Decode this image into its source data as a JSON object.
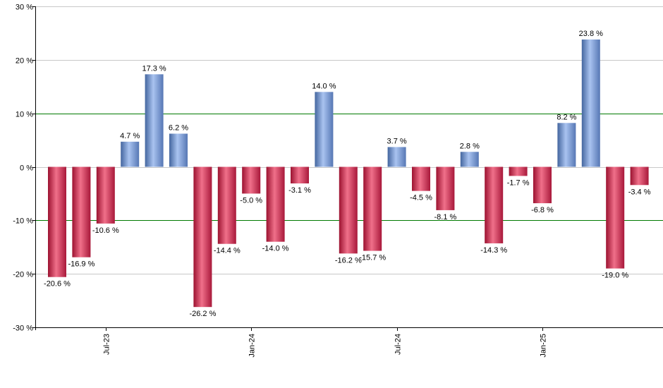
{
  "chart_data": {
    "type": "bar",
    "title": "",
    "xlabel": "",
    "ylabel": "",
    "ylim": [
      -30,
      30
    ],
    "yticks": [
      30,
      20,
      10,
      0,
      -10,
      -20,
      -30
    ],
    "ytick_labels": [
      "30 %",
      "20 %",
      "10 %",
      "0 %",
      "-10 %",
      "-20 %",
      "-30 %"
    ],
    "reference_lines": [
      10,
      -10
    ],
    "grid": true,
    "values": [
      -20.6,
      -16.9,
      -10.6,
      4.7,
      17.3,
      6.2,
      -26.2,
      -14.4,
      -5.0,
      -14.0,
      -3.1,
      14.0,
      -16.2,
      -15.7,
      3.7,
      -4.5,
      -8.1,
      2.8,
      -14.3,
      -1.7,
      -6.8,
      8.2,
      23.8,
      -19.0,
      -3.4
    ],
    "value_labels": [
      "-20.6 %",
      "-16.9 %",
      "-10.6 %",
      "4.7 %",
      "17.3 %",
      "6.2 %",
      "-26.2 %",
      "-14.4 %",
      "-5.0 %",
      "-14.0 %",
      "-3.1 %",
      "14.0 %",
      "-16.2 %",
      "-15.7 %",
      "3.7 %",
      "-4.5 %",
      "-8.1 %",
      "2.8 %",
      "-14.3 %",
      "-1.7 %",
      "-6.8 %",
      "8.2 %",
      "23.8 %",
      "-19.0 %",
      "-3.4 %"
    ],
    "x_tick_labels": [
      {
        "label": "Jul-23",
        "bar_index": 2
      },
      {
        "label": "Jan-24",
        "bar_index": 8
      },
      {
        "label": "Jul-24",
        "bar_index": 14
      },
      {
        "label": "Jan-25",
        "bar_index": 20
      }
    ],
    "colors": {
      "positive": "#8aa8e0",
      "positive_dark": "#44669f",
      "negative": "#e04a66",
      "negative_dark": "#9c1230",
      "reference_line": "#007a00",
      "grid": "#c8c8c8",
      "axis": "#000000"
    }
  }
}
